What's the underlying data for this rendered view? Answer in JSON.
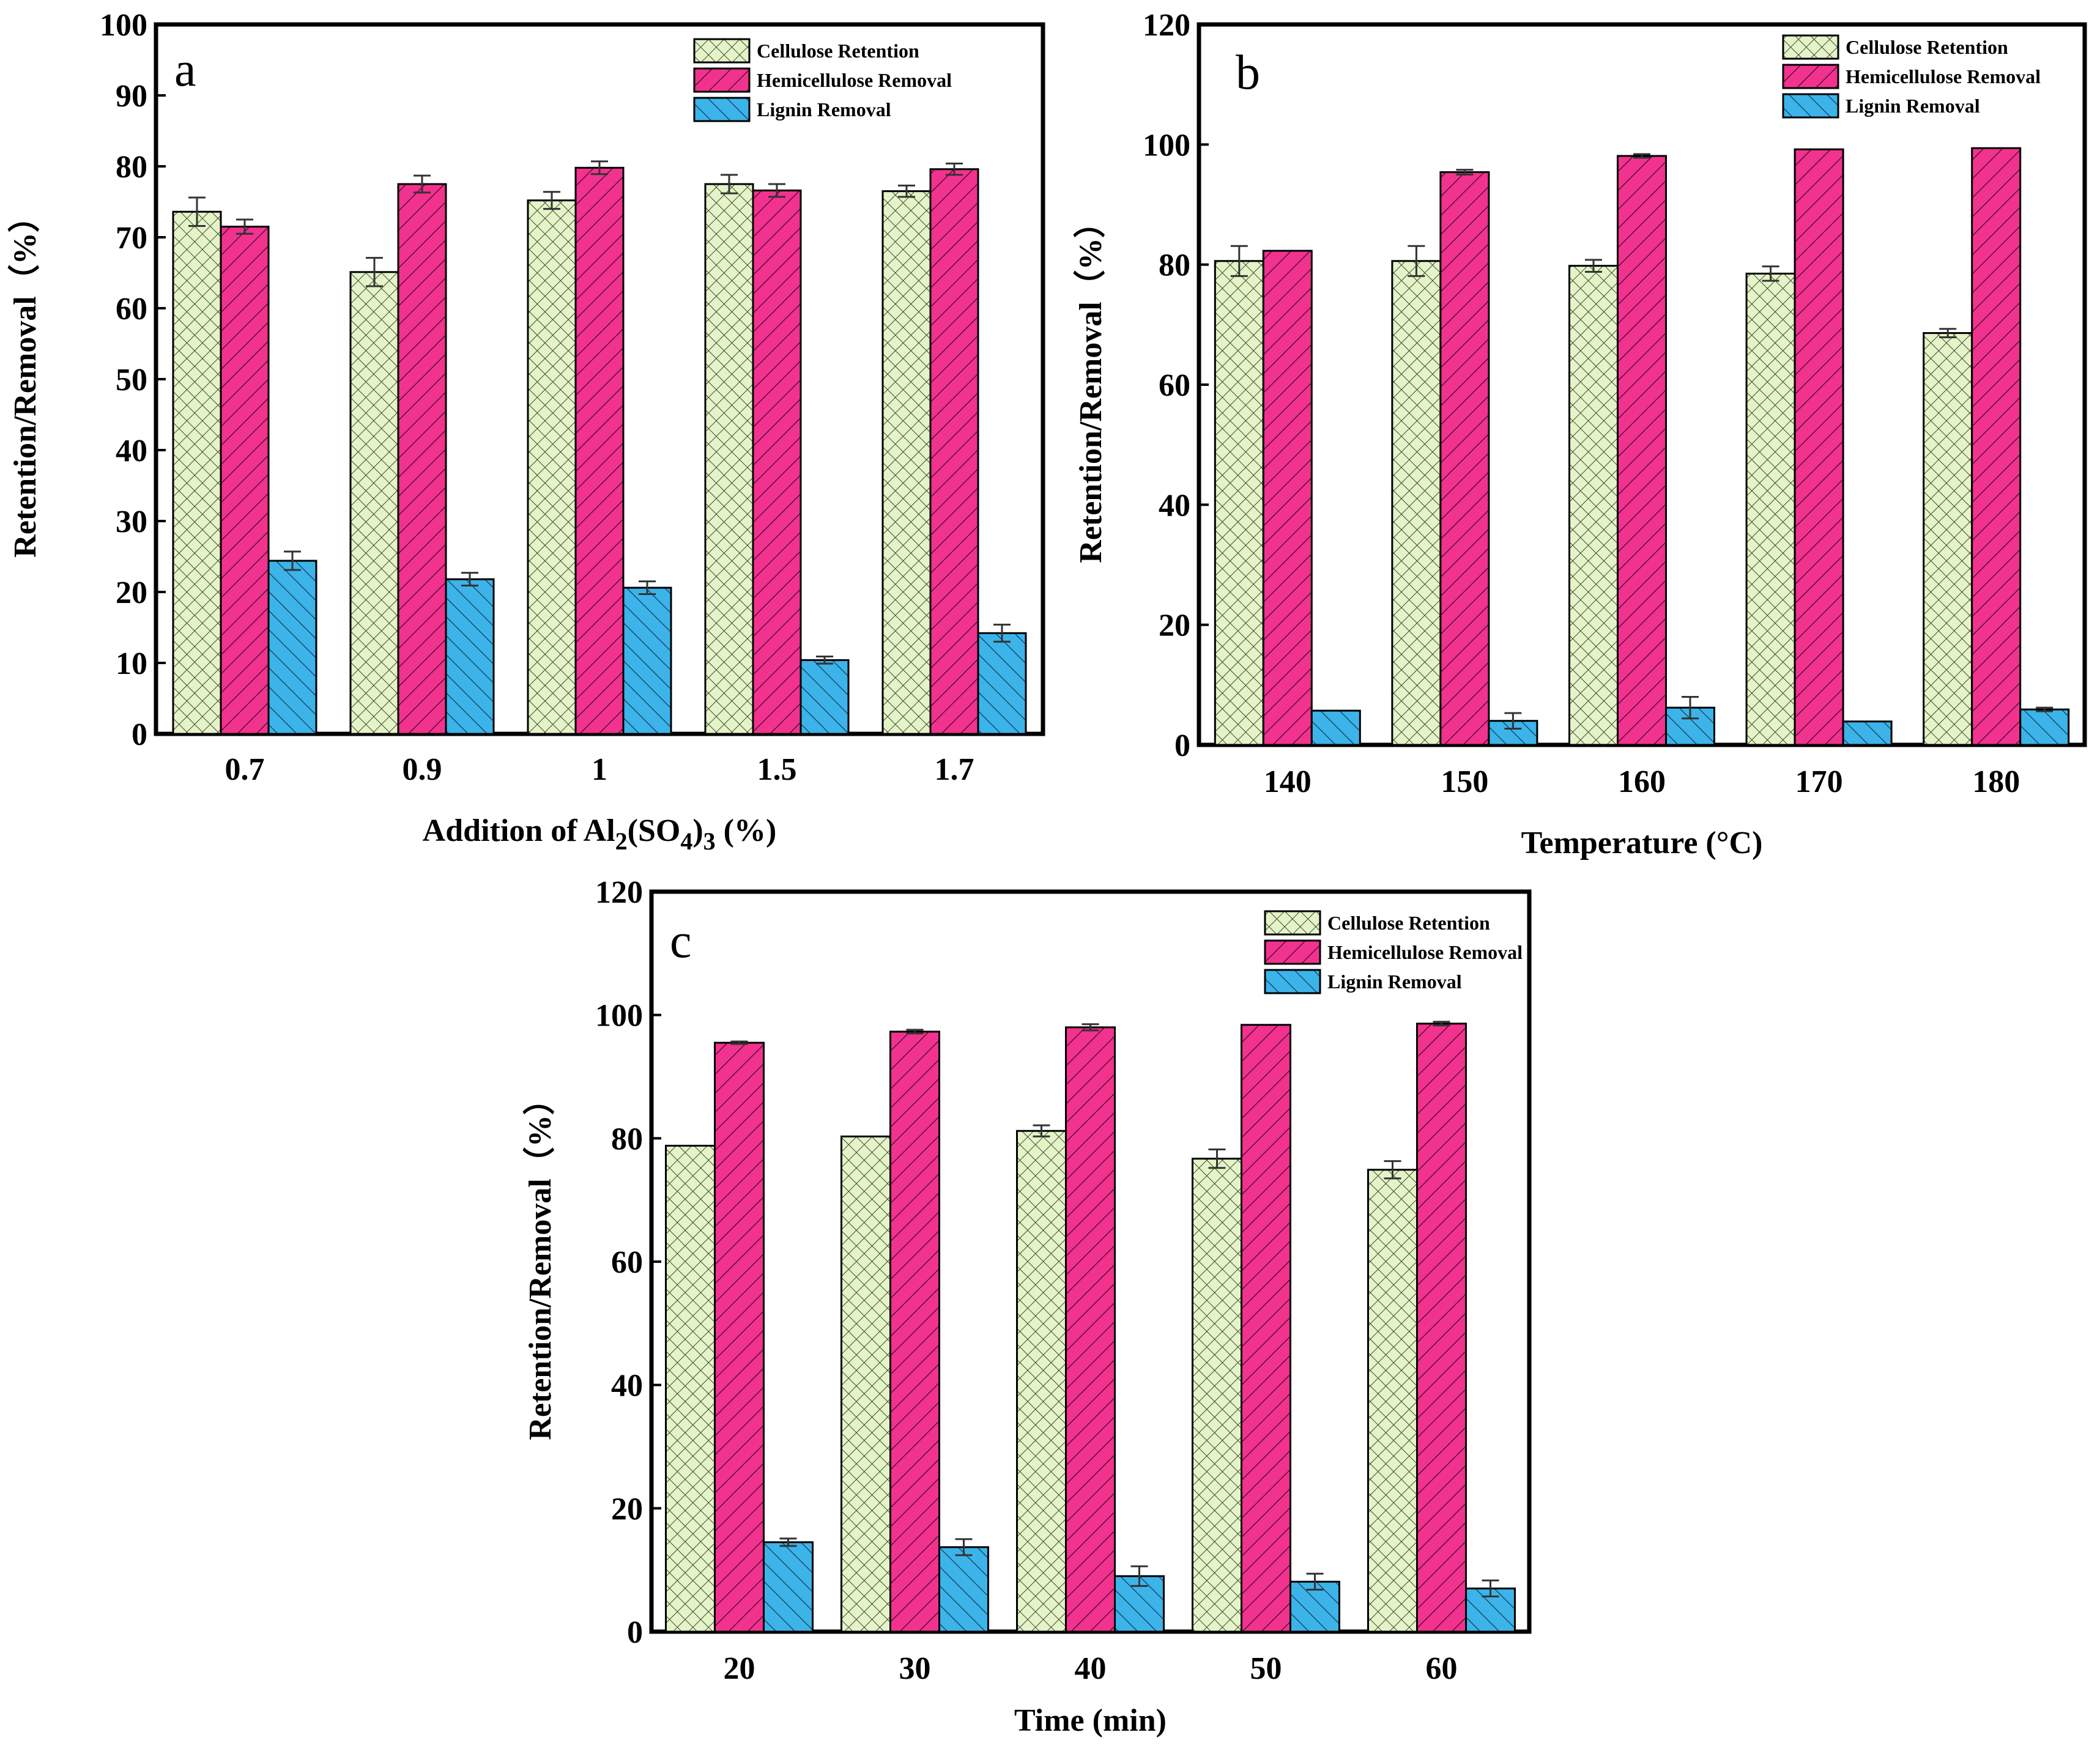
{
  "chart_data": [
    {
      "type": "bar",
      "panel": "a",
      "title": "",
      "categories": [
        "0.7",
        "0.9",
        "1",
        "1.5",
        "1.7"
      ],
      "xlabel_parts": [
        {
          "text": "Addition of Al",
          "sub": false
        },
        {
          "text": "2",
          "sub": true
        },
        {
          "text": "(SO",
          "sub": false
        },
        {
          "text": "4",
          "sub": true
        },
        {
          "text": ")",
          "sub": false
        },
        {
          "text": "3",
          "sub": true
        },
        {
          "text": "  (%)",
          "sub": false
        }
      ],
      "ylabel": "Retention/Removal（%）",
      "ylim": [
        0,
        100
      ],
      "yticks": [
        0,
        10,
        20,
        30,
        40,
        50,
        60,
        70,
        80,
        90,
        100
      ],
      "legend_position": "top-right",
      "series": [
        {
          "name": "Cellulose  Retention",
          "values": [
            73.6,
            65.1,
            75.2,
            77.5,
            76.5
          ],
          "errors": [
            2.0,
            2.0,
            1.2,
            1.3,
            0.8
          ]
        },
        {
          "name": "Hemicellulose Removal",
          "values": [
            71.5,
            77.5,
            79.8,
            76.6,
            79.6
          ],
          "errors": [
            1.0,
            1.2,
            0.9,
            0.9,
            0.8
          ]
        },
        {
          "name": "Lignin Removal",
          "values": [
            24.4,
            21.8,
            20.6,
            10.4,
            14.2
          ],
          "errors": [
            1.3,
            0.9,
            0.9,
            0.5,
            1.2
          ]
        }
      ]
    },
    {
      "type": "bar",
      "panel": "b",
      "title": "",
      "categories": [
        "140",
        "150",
        "160",
        "170",
        "180"
      ],
      "xlabel_parts": [
        {
          "text": "Temperature (°C)",
          "sub": false
        }
      ],
      "ylabel": "Retention/Removal（%）",
      "ylim": [
        0,
        120
      ],
      "yticks": [
        0,
        20,
        40,
        60,
        80,
        100,
        120
      ],
      "legend_position": "top-right",
      "series": [
        {
          "name": "Cellulose Retention",
          "values": [
            80.6,
            80.6,
            79.8,
            78.5,
            68.6
          ],
          "errors": [
            2.5,
            2.5,
            1.0,
            1.2,
            0.7
          ]
        },
        {
          "name": "Hemicellulose Removal",
          "values": [
            82.3,
            95.4,
            98.1,
            99.2,
            99.4
          ],
          "errors": [
            0,
            0.4,
            0.3,
            0,
            0
          ]
        },
        {
          "name": "Lignin Removal",
          "values": [
            5.7,
            4.0,
            6.2,
            3.9,
            5.9
          ],
          "errors": [
            0,
            1.3,
            1.8,
            0,
            0.3
          ]
        }
      ]
    },
    {
      "type": "bar",
      "panel": "c",
      "title": "",
      "categories": [
        "20",
        "30",
        "40",
        "50",
        "60"
      ],
      "xlabel_parts": [
        {
          "text": "Time (min)",
          "sub": false
        }
      ],
      "ylabel": "Retention/Removal（%）",
      "ylim": [
        0,
        120
      ],
      "yticks": [
        0,
        20,
        40,
        60,
        80,
        100,
        120
      ],
      "legend_position": "top-right",
      "series": [
        {
          "name": "Cellulose Retention",
          "values": [
            78.8,
            80.3,
            81.2,
            76.7,
            74.9
          ],
          "errors": [
            0,
            0,
            0.9,
            1.5,
            1.4
          ]
        },
        {
          "name": "Hemicellulose Removal",
          "values": [
            95.5,
            97.3,
            98.0,
            98.4,
            98.6
          ],
          "errors": [
            0.2,
            0.3,
            0.5,
            0,
            0.3
          ]
        },
        {
          "name": "Lignin Removal",
          "values": [
            14.5,
            13.7,
            9.0,
            8.1,
            7.0
          ],
          "errors": [
            0.6,
            1.3,
            1.6,
            1.3,
            1.3
          ]
        }
      ]
    }
  ],
  "colors": {
    "cellulose_fill": "#e4f3c8",
    "cellulose_hatch": "#3b4a2a",
    "hemicellulose_fill": "#f2328f",
    "hemicellulose_hatch": "#3a0a20",
    "lignin_fill": "#3cb4ea",
    "lignin_hatch": "#0f3a55"
  },
  "icons": [
    "crosshatch-pattern",
    "diagonal-hatch-pattern",
    "backslash-hatch-pattern"
  ]
}
